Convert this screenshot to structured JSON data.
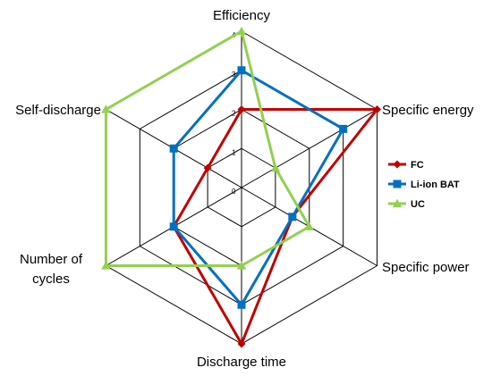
{
  "chart_data": {
    "type": "radar",
    "axes": [
      "Efficiency",
      "Specific energy",
      "Specific power",
      "Discharge time",
      "Number of cycles",
      "Self-discharge"
    ],
    "axis_label_lines": [
      [
        "Efficiency"
      ],
      [
        "Specific energy"
      ],
      [
        "Specific power"
      ],
      [
        "Discharge time"
      ],
      [
        "Number of",
        "cycles"
      ],
      [
        "Self-discharge"
      ]
    ],
    "rlim": [
      0,
      4
    ],
    "ticks": [
      "0",
      "1",
      "2",
      "3",
      "4"
    ],
    "grid": true,
    "legend_position": "right",
    "series": [
      {
        "name": "FC",
        "color": "#c00000",
        "marker": "diamond",
        "values": [
          2,
          4,
          1.5,
          4,
          2,
          1
        ]
      },
      {
        "name": "Li-ion BAT",
        "color": "#0070c0",
        "marker": "square",
        "values": [
          3,
          3,
          1.5,
          3,
          2,
          2
        ]
      },
      {
        "name": "UC",
        "color": "#92d050",
        "marker": "triangle",
        "values": [
          4,
          1,
          2,
          2,
          4,
          4
        ]
      }
    ]
  }
}
